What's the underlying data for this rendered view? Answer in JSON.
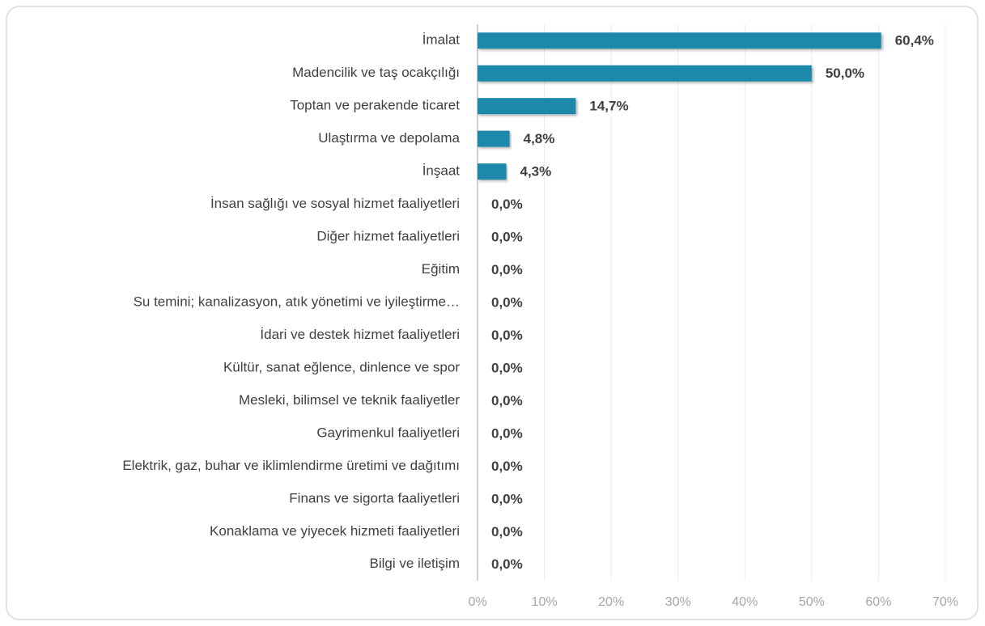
{
  "chart_data": {
    "type": "barh",
    "categories": [
      "İmalat",
      "Madencilik ve taş ocakçılığı",
      "Toptan ve perakende ticaret",
      "Ulaştırma ve depolama",
      "İnşaat",
      "İnsan sağlığı ve sosyal hizmet faaliyetleri",
      "Diğer hizmet faaliyetleri",
      "Eğitim",
      "Su temini; kanalizasyon, atık yönetimi ve iyileştirme…",
      "İdari ve destek hizmet faaliyetleri",
      "Kültür, sanat eğlence, dinlence ve spor",
      "Mesleki, bilimsel ve teknik faaliyetler",
      "Gayrimenkul faaliyetleri",
      "Elektrik, gaz, buhar ve iklimlendirme üretimi ve dağıtımı",
      "Finans ve sigorta faaliyetleri",
      "Konaklama ve yiyecek hizmeti faaliyetleri",
      "Bilgi ve iletişim"
    ],
    "values": [
      60.4,
      50.0,
      14.7,
      4.8,
      4.3,
      0,
      0,
      0,
      0,
      0,
      0,
      0,
      0,
      0,
      0,
      0,
      0
    ],
    "value_labels": [
      "60,4%",
      "50,0%",
      "14,7%",
      "4,8%",
      "4,3%",
      "0,0%",
      "0,0%",
      "0,0%",
      "0,0%",
      "0,0%",
      "0,0%",
      "0,0%",
      "0,0%",
      "0,0%",
      "0,0%",
      "0,0%",
      "0,0%"
    ],
    "color": "#1f89ab",
    "xlim": [
      0,
      70
    ],
    "xticks": [
      {
        "value": 0,
        "label": "0%"
      },
      {
        "value": 10,
        "label": "10%"
      },
      {
        "value": 20,
        "label": "20%"
      },
      {
        "value": 30,
        "label": "30%"
      },
      {
        "value": 40,
        "label": "40%"
      },
      {
        "value": 50,
        "label": "50%"
      },
      {
        "value": 60,
        "label": "60%"
      },
      {
        "value": 70,
        "label": "70%"
      }
    ],
    "grid": true
  }
}
